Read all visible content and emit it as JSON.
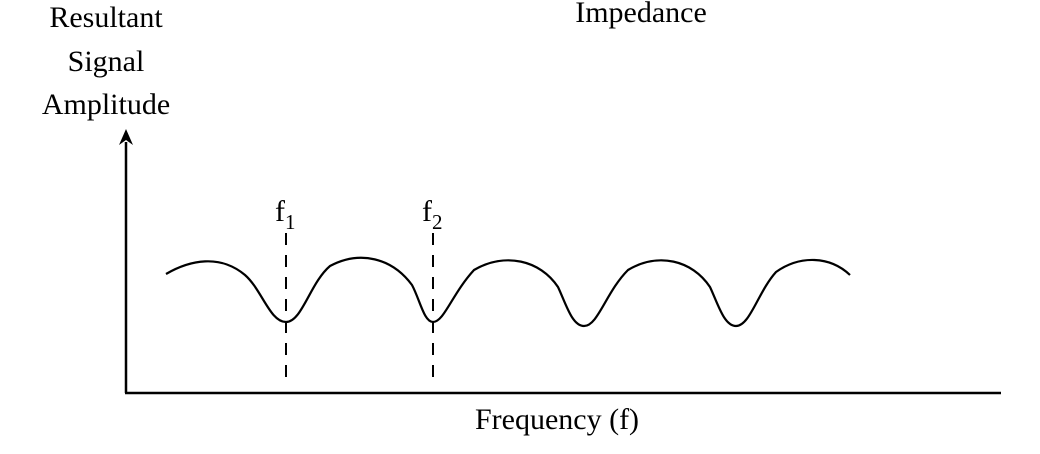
{
  "title": "Impedance",
  "y_axis": {
    "label_lines": [
      "Resultant",
      "Signal",
      "Amplitude"
    ]
  },
  "x_axis": {
    "label": "Frequency (f)"
  },
  "markers": [
    {
      "base": "f",
      "sub": "1"
    },
    {
      "base": "f",
      "sub": "2"
    }
  ],
  "colors": {
    "ink": "#000000",
    "background": "#ffffff"
  }
}
